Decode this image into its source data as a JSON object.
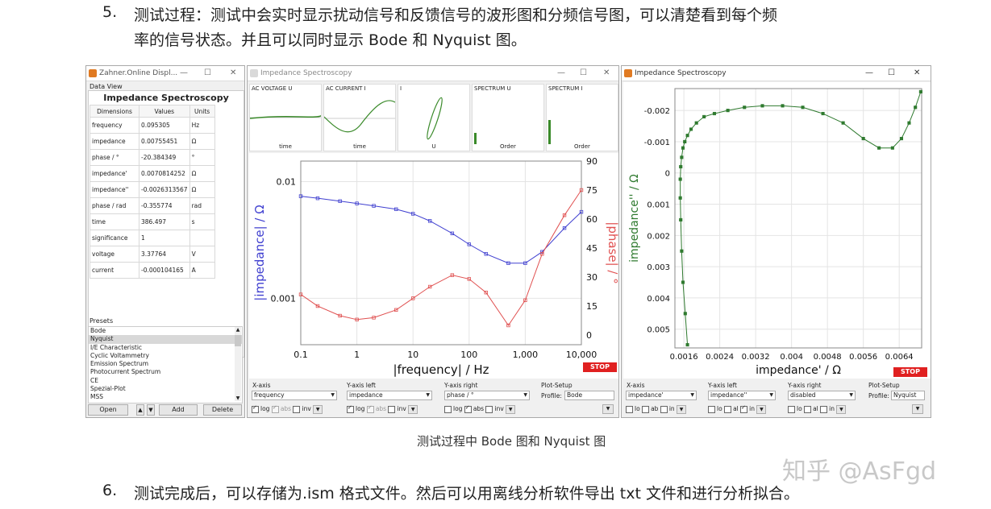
{
  "doc": {
    "item5_number": "5.",
    "item5_line1": "测试过程：测试中会实时显示扰动信号和反馈信号的波形图和分频信号图，可以清楚看到每个频",
    "item5_line2": "率的信号状态。并且可以同时显示 Bode 和 Nyquist 图。",
    "caption": "测试过程中 Bode 图和 Nyquist 图",
    "item6_number": "6.",
    "item6_line": "测试完成后，可以存储为.ism 格式文件。然后可以用离线分析软件导出 txt 文件和进行分析拟合。",
    "watermark": "知乎 @AsFgd"
  },
  "win1": {
    "title": "Zahner.Online Displ...",
    "data_view_label": "Data View",
    "heading": "Impedance Spectroscopy",
    "col_headers": [
      "Dimensions",
      "Values",
      "Units"
    ],
    "rows": [
      [
        "frequency",
        "0.095305",
        "Hz"
      ],
      [
        "impedance",
        "0.00755451",
        "Ω"
      ],
      [
        "phase / °",
        "-20.384349",
        "°"
      ],
      [
        "impedance'",
        "0.0070814252",
        "Ω"
      ],
      [
        "impedance''",
        "-0.0026313567",
        "Ω"
      ],
      [
        "phase / rad",
        "-0.355774",
        "rad"
      ],
      [
        "time",
        "386.497",
        "s"
      ],
      [
        "significance",
        "1",
        ""
      ],
      [
        "voltage",
        "3.37764",
        "V"
      ],
      [
        "current",
        "-0.000104165",
        "A"
      ]
    ],
    "presets_label": "Presets",
    "presets": [
      "Bode",
      "Nyquist",
      "I/E Characteristic",
      "Cyclic Voltammetry",
      "Emission Spectrum",
      "Photocurrent Spectrum",
      "CE",
      "Spezial-Plot",
      "MSS"
    ],
    "selected_preset": "Nyquist",
    "btn_open": "Open",
    "btn_up": "▲",
    "btn_down": "▼",
    "btn_add": "Add",
    "btn_delete": "Delete"
  },
  "win2": {
    "title": "Impedance Spectroscopy",
    "minis": [
      {
        "title": "AC VOLTAGE U",
        "xlabel": "time"
      },
      {
        "title": "AC CURRENT I",
        "xlabel": "time"
      },
      {
        "title": "I",
        "xlabel": "U"
      },
      {
        "title": "SPECTRUM U",
        "xlabel": "Order"
      },
      {
        "title": "SPECTRUM I",
        "xlabel": "Order"
      }
    ],
    "stop": "STOP",
    "xaxis_label": "X-axis",
    "xaxis_value": "frequency",
    "yleft_label": "Y-axis left",
    "yleft_value": "impedance",
    "yright_label": "Y-axis right",
    "yright_value": "phase / °",
    "plotsetup_label": "Plot-Setup",
    "profile_label": "Profile:",
    "profile_value": "Bode",
    "opt_log": "log",
    "opt_abs": "abs",
    "opt_inv": "inv"
  },
  "win3": {
    "title": "Impedance Spectroscopy",
    "stop": "STOP",
    "xaxis_label": "X-axis",
    "xaxis_value": "impedance'",
    "yleft_label": "Y-axis left",
    "yleft_value": "impedance''",
    "yright_label": "Y-axis right",
    "yright_value": "disabled",
    "plotsetup_label": "Plot-Setup",
    "profile_label": "Profile:",
    "profile_value": "Nyquist",
    "opt_x1": "lo",
    "opt_x2": "ab",
    "opt_x3": "in",
    "opt_y1": "lo",
    "opt_y2": "al",
    "opt_y3": "in"
  },
  "chart_data": [
    {
      "type": "line",
      "name_ref": "bode",
      "xlabel": "|frequency| / Hz",
      "ylabel": "|impedance| / Ω",
      "y2label": "|phase| / °",
      "x_scale": "log",
      "y_scale": "log",
      "xlim": [
        0.1,
        10000
      ],
      "ylim": [
        0.0004,
        0.015
      ],
      "y2lim": [
        -5,
        90
      ],
      "x_ticks": [
        "0.1",
        "1",
        "10",
        "100",
        "1,000",
        "10,000"
      ],
      "y_ticks": [
        "0.01",
        "0.001"
      ],
      "y2_ticks": [
        "90",
        "75",
        "60",
        "45",
        "30",
        "15",
        "0"
      ],
      "colors": {
        "impedance": "#4040d0",
        "phase": "#e05050"
      },
      "x": [
        0.1,
        0.2,
        0.5,
        1,
        2,
        5,
        10,
        20,
        50,
        100,
        200,
        500,
        1000,
        2000,
        5000,
        10000
      ],
      "series": [
        {
          "name": "|impedance|",
          "values": [
            0.0075,
            0.0072,
            0.0068,
            0.0065,
            0.0062,
            0.0058,
            0.0053,
            0.0046,
            0.0036,
            0.0029,
            0.0024,
            0.002,
            0.002,
            0.0025,
            0.004,
            0.0055
          ]
        },
        {
          "name": "|phase|",
          "values": [
            21,
            15,
            10,
            8,
            9,
            13,
            19,
            25,
            31,
            29,
            22,
            5,
            18,
            42,
            62,
            75
          ]
        }
      ]
    },
    {
      "type": "scatter",
      "name_ref": "nyquist",
      "xlabel": "impedance' / Ω",
      "ylabel": "impedance'' / Ω",
      "xlim": [
        0.0014,
        0.0069
      ],
      "ylim_top_to_bottom": [
        -0.0027,
        0.0056
      ],
      "y_inverted": true,
      "x_ticks": [
        "0.0016",
        "0.0024",
        "0.0032",
        "0.004",
        "0.0048",
        "0.0056",
        "0.0064"
      ],
      "y_ticks": [
        "-0.002",
        "-0.001",
        "0",
        "0.001",
        "0.002",
        "0.003",
        "0.004",
        "0.005"
      ],
      "color": "#2f7a2f",
      "x": [
        0.00168,
        0.00163,
        0.00158,
        0.00155,
        0.00153,
        0.00152,
        0.00152,
        0.00153,
        0.00155,
        0.00158,
        0.00162,
        0.00168,
        0.00176,
        0.00188,
        0.00205,
        0.00228,
        0.00258,
        0.00295,
        0.00335,
        0.0038,
        0.00425,
        0.0047,
        0.00515,
        0.0056,
        0.00595,
        0.00625,
        0.00645,
        0.00662,
        0.00676,
        0.00688
      ],
      "y": [
        0.0055,
        0.0045,
        0.0035,
        0.0025,
        0.0015,
        0.0008,
        0.0002,
        -0.0002,
        -0.0005,
        -0.0008,
        -0.001,
        -0.0012,
        -0.0014,
        -0.0016,
        -0.0018,
        -0.0019,
        -0.002,
        -0.0021,
        -0.00215,
        -0.00215,
        -0.0021,
        -0.0019,
        -0.0016,
        -0.0011,
        -0.0008,
        -0.0008,
        -0.0011,
        -0.0016,
        -0.0021,
        -0.0026
      ]
    }
  ]
}
